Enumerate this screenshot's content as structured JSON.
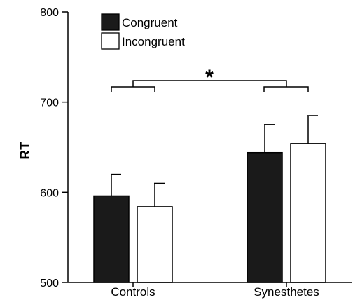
{
  "chart_data": {
    "type": "bar",
    "title": "",
    "xlabel": "",
    "ylabel": "RT",
    "ylim": [
      500,
      800
    ],
    "yticks": [
      500,
      600,
      700,
      800
    ],
    "categories": [
      "Controls",
      "Synesthetes"
    ],
    "series": [
      {
        "name": "Congruent",
        "values": [
          596,
          644
        ],
        "errors": [
          24,
          31
        ],
        "fill": "#1a1a1a"
      },
      {
        "name": "Incongruent",
        "values": [
          584,
          654
        ],
        "errors": [
          26,
          31
        ],
        "fill": "#ffffff"
      }
    ],
    "legend": {
      "placement": "top-left"
    },
    "grid": false,
    "significance": {
      "label": "*",
      "between": [
        "Controls",
        "Synesthetes"
      ]
    }
  }
}
